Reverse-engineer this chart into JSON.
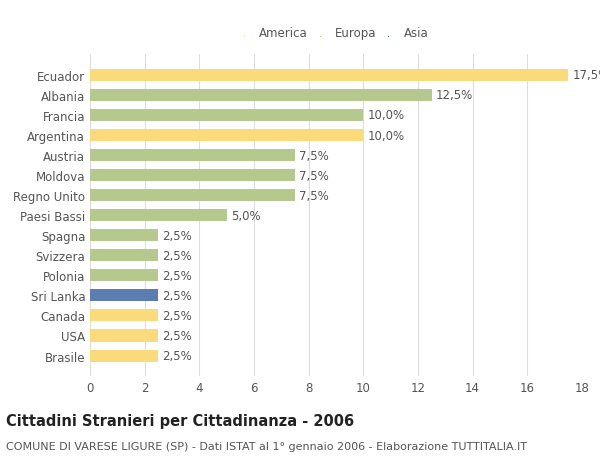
{
  "countries": [
    "Ecuador",
    "Albania",
    "Francia",
    "Argentina",
    "Austria",
    "Moldova",
    "Regno Unito",
    "Paesi Bassi",
    "Spagna",
    "Svizzera",
    "Polonia",
    "Sri Lanka",
    "Canada",
    "USA",
    "Brasile"
  ],
  "values": [
    17.5,
    12.5,
    10.0,
    10.0,
    7.5,
    7.5,
    7.5,
    5.0,
    2.5,
    2.5,
    2.5,
    2.5,
    2.5,
    2.5,
    2.5
  ],
  "continents": [
    "America",
    "Europa",
    "Europa",
    "America",
    "Europa",
    "Europa",
    "Europa",
    "Europa",
    "Europa",
    "Europa",
    "Europa",
    "Asia",
    "America",
    "America",
    "America"
  ],
  "colors": {
    "America": "#FADA7A",
    "Europa": "#B5C98E",
    "Asia": "#5B7DB1"
  },
  "legend_labels": [
    "America",
    "Europa",
    "Asia"
  ],
  "legend_colors": [
    "#FADA7A",
    "#B5C98E",
    "#5B7DB1"
  ],
  "title_bold": "Cittadini Stranieri per Cittadinanza - 2006",
  "subtitle": "COMUNE DI VARESE LIGURE (SP) - Dati ISTAT al 1° gennaio 2006 - Elaborazione TUTTITALIA.IT",
  "xlim": [
    0,
    18
  ],
  "xticks": [
    0,
    2,
    4,
    6,
    8,
    10,
    12,
    14,
    16,
    18
  ],
  "background_color": "#FFFFFF",
  "grid_color": "#DDDDDD",
  "bar_height": 0.6,
  "label_fontsize": 8.5,
  "tick_fontsize": 8.5,
  "title_fontsize": 10.5,
  "subtitle_fontsize": 8
}
